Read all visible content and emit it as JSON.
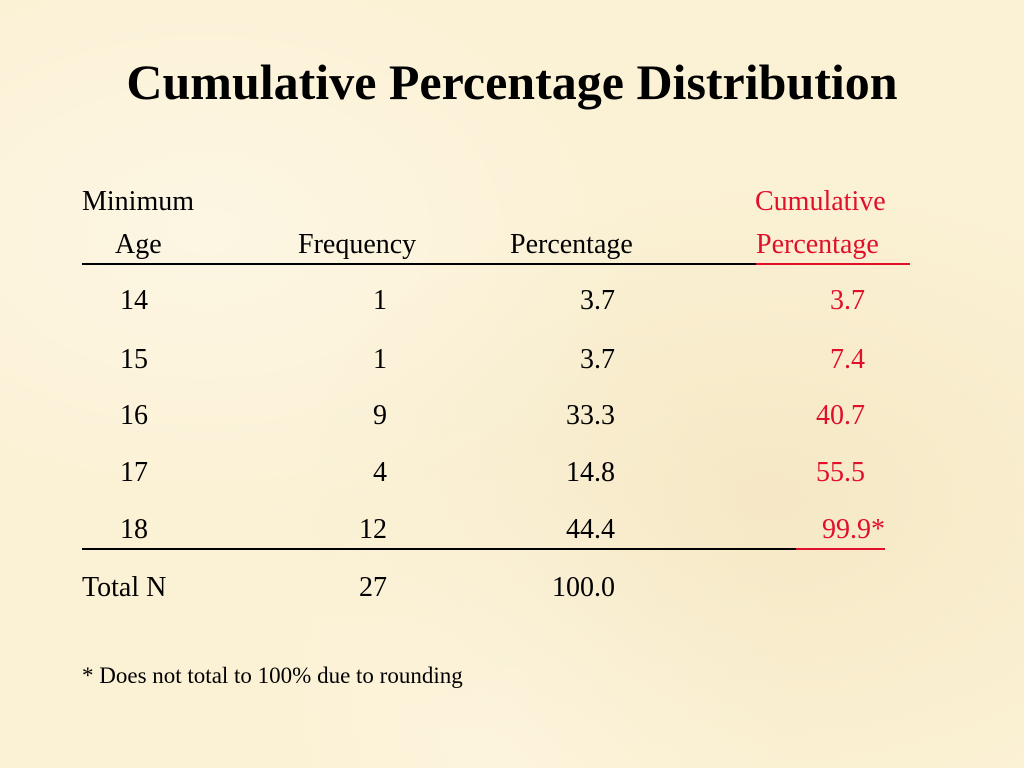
{
  "title": "Cumulative Percentage Distribution",
  "headers": {
    "age_line1": "Minimum",
    "age_line2": "Age",
    "frequency": "Frequency",
    "percentage": "Percentage",
    "cum_line1": "Cumulative",
    "cum_line2": "Percentage"
  },
  "rows": [
    {
      "age": "14",
      "frequency": "1",
      "percentage": "3.7",
      "cumulative": "3.7"
    },
    {
      "age": "15",
      "frequency": "1",
      "percentage": "3.7",
      "cumulative": "7.4"
    },
    {
      "age": "16",
      "frequency": "9",
      "percentage": "33.3",
      "cumulative": "40.7"
    },
    {
      "age": "17",
      "frequency": "4",
      "percentage": "14.8",
      "cumulative": "55.5"
    },
    {
      "age": "18",
      "frequency": "12",
      "percentage": "44.4",
      "cumulative": "99.9*"
    }
  ],
  "total": {
    "label": "Total N",
    "frequency": "27",
    "percentage": "100.0"
  },
  "footnote": "* Does not total to 100% due to rounding",
  "colors": {
    "background": "#fbf1d4",
    "accent": "#e0102a",
    "text": "#000000"
  }
}
